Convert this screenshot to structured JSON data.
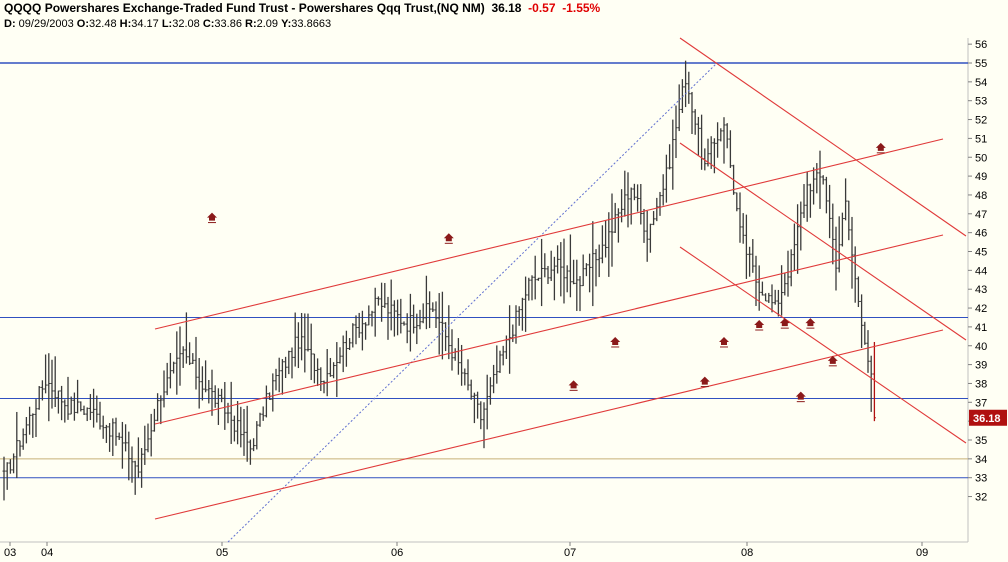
{
  "header": {
    "symbol": "QQQQ",
    "name": "Powershares Exchange-Traded Fund Trust - Powershares Qqq Trust,(NQ NM)",
    "last": "36.18",
    "change": "-0.57",
    "change_pct": "-1.55%",
    "info": {
      "date_label": "D:",
      "date": "09/29/2003",
      "open_label": "O:",
      "open": "32.48",
      "high_label": "H:",
      "high": "34.17",
      "low_label": "L:",
      "low": "32.08",
      "close_label": "C:",
      "close": "33.86",
      "range_label": "R:",
      "range": "2.09",
      "y_label": "Y:",
      "y": "33.8663"
    }
  },
  "colors": {
    "background": "#fffff4",
    "bar": "#3a3a3a",
    "last_bar": "#b01010",
    "channel": "#e03a3a",
    "horizontal_blue": "#3050c0",
    "horizontal_tan": "#c8b078",
    "dotted_trend": "#6070d0",
    "marker": "#8b1a1a",
    "price_box": "#b01010",
    "price_box_text": "#ffffff",
    "axis_border": "#c0c0c0"
  },
  "chart_data": {
    "type": "ohlc",
    "price_axis": {
      "min": 31,
      "max": 56.5,
      "ticks": [
        32,
        33,
        34,
        35,
        36,
        37,
        38,
        39,
        40,
        41,
        42,
        43,
        44,
        45,
        46,
        47,
        48,
        49,
        50,
        51,
        52,
        53,
        54,
        55,
        56
      ]
    },
    "x_labels": [
      "03",
      "04",
      "05",
      "06",
      "07",
      "08",
      "09"
    ],
    "last_price_label": "36.18",
    "last_price": 36.18,
    "horizontal_lines": [
      {
        "price": 55.0,
        "style": "blue"
      },
      {
        "price": 41.5,
        "style": "blue"
      },
      {
        "price": 37.2,
        "style": "blue"
      },
      {
        "price": 34.0,
        "style": "tan"
      },
      {
        "price": 33.0,
        "style": "blue"
      }
    ],
    "anchors": [
      {
        "bar": 0,
        "price": 33.0
      },
      {
        "bar": 13,
        "price": 38.2
      },
      {
        "bar": 20,
        "price": 36.8
      },
      {
        "bar": 27,
        "price": 36.6
      },
      {
        "bar": 35,
        "price": 35.3
      },
      {
        "bar": 42,
        "price": 33.4
      },
      {
        "bar": 49,
        "price": 37.5
      },
      {
        "bar": 56,
        "price": 39.6
      },
      {
        "bar": 62,
        "price": 38.0
      },
      {
        "bar": 70,
        "price": 36.4
      },
      {
        "bar": 77,
        "price": 34.6
      },
      {
        "bar": 84,
        "price": 38.0
      },
      {
        "bar": 92,
        "price": 40.3
      },
      {
        "bar": 100,
        "price": 38.3
      },
      {
        "bar": 108,
        "price": 40.5
      },
      {
        "bar": 117,
        "price": 42.3
      },
      {
        "bar": 126,
        "price": 41.2
      },
      {
        "bar": 134,
        "price": 42.0
      },
      {
        "bar": 142,
        "price": 39.0
      },
      {
        "bar": 149,
        "price": 36.2
      },
      {
        "bar": 156,
        "price": 39.6
      },
      {
        "bar": 164,
        "price": 43.3
      },
      {
        "bar": 172,
        "price": 44.3
      },
      {
        "bar": 180,
        "price": 43.4
      },
      {
        "bar": 188,
        "price": 45.5
      },
      {
        "bar": 196,
        "price": 48.5
      },
      {
        "bar": 201,
        "price": 46.0
      },
      {
        "bar": 207,
        "price": 49.0
      },
      {
        "bar": 213,
        "price": 54.3
      },
      {
        "bar": 219,
        "price": 49.5
      },
      {
        "bar": 225,
        "price": 52.0
      },
      {
        "bar": 230,
        "price": 46.0
      },
      {
        "bar": 235,
        "price": 43.5
      },
      {
        "bar": 241,
        "price": 42.0
      },
      {
        "bar": 246,
        "price": 44.5
      },
      {
        "bar": 251,
        "price": 48.5
      },
      {
        "bar": 256,
        "price": 49.0
      },
      {
        "bar": 260,
        "price": 44.5
      },
      {
        "bar": 263,
        "price": 47.5
      },
      {
        "bar": 266,
        "price": 43.5
      },
      {
        "bar": 269,
        "price": 40.5
      },
      {
        "bar": 272,
        "price": 37.0
      }
    ],
    "channel_lines": [
      {
        "x1": 155,
        "y1": 329,
        "x2": 943,
        "y2": 139
      },
      {
        "x1": 155,
        "y1": 424,
        "x2": 943,
        "y2": 235
      },
      {
        "x1": 155,
        "y1": 519,
        "x2": 943,
        "y2": 330
      },
      {
        "x1": 680,
        "y1": 38,
        "x2": 966,
        "y2": 236
      },
      {
        "x1": 680,
        "y1": 143,
        "x2": 966,
        "y2": 340
      },
      {
        "x1": 680,
        "y1": 247,
        "x2": 966,
        "y2": 443
      }
    ],
    "marker_bars": [
      65,
      139,
      191,
      178,
      219,
      225,
      236,
      252,
      274,
      249,
      259,
      244
    ]
  }
}
